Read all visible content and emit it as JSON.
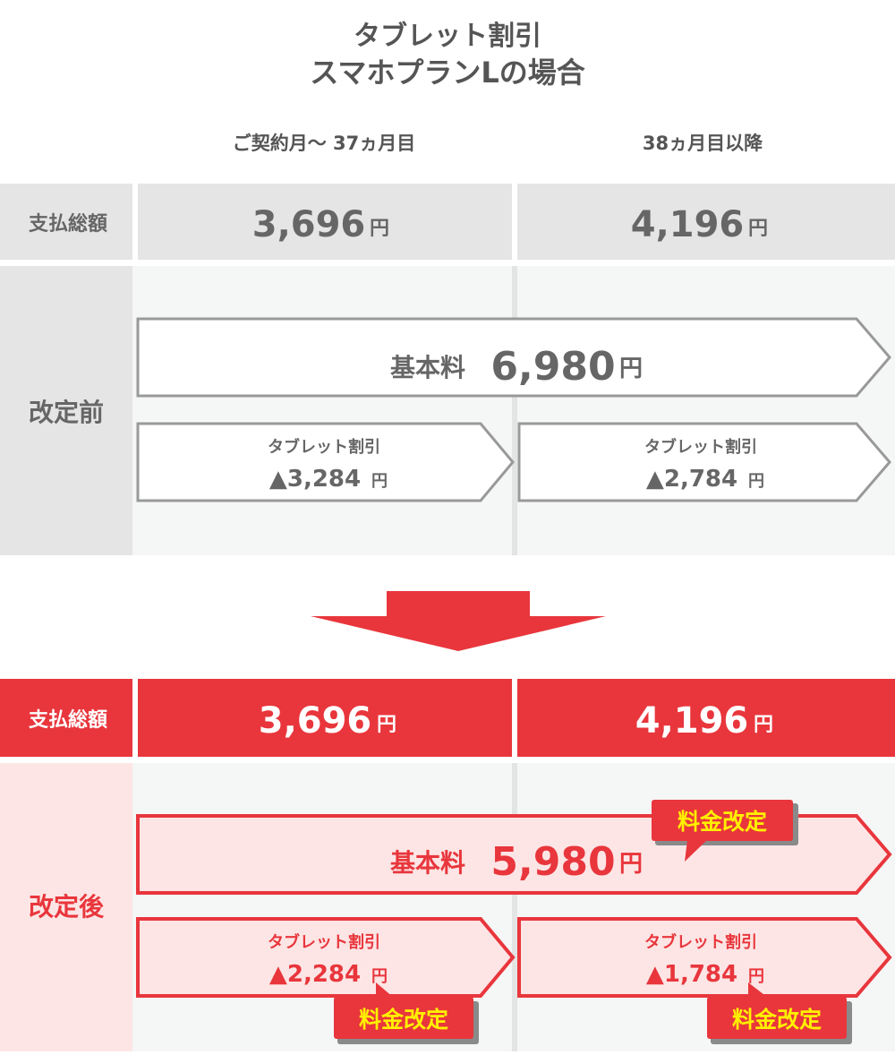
{
  "title": {
    "line1": "タブレット割引",
    "line2": "スマホプランLの場合"
  },
  "columns": {
    "col1": "ご契約月～ 37ヵ月目",
    "col2": "38ヵ月目以降"
  },
  "yen": "円",
  "before": {
    "total_label": "支払総額",
    "total_col1": "3,696",
    "total_col2": "4,196",
    "section_label": "改定前",
    "base_label": "基本料",
    "base_value": "6,980",
    "discount_label": "タブレット割引",
    "discount_col1": "▲3,284",
    "discount_col2": "▲2,784"
  },
  "after": {
    "total_label": "支払総額",
    "total_col1": "3,696",
    "total_col2": "4,196",
    "section_label": "改定後",
    "base_label": "基本料",
    "base_value": "5,980",
    "discount_label": "タブレット割引",
    "discount_col1": "▲2,284",
    "discount_col2": "▲1,784",
    "badge": "料金改定"
  },
  "colors": {
    "red": "#e8363c",
    "gray_text": "#666666",
    "badge_text": "#fff000",
    "pink": "#fde5e5",
    "gray_bg": "#e5e5e5"
  }
}
